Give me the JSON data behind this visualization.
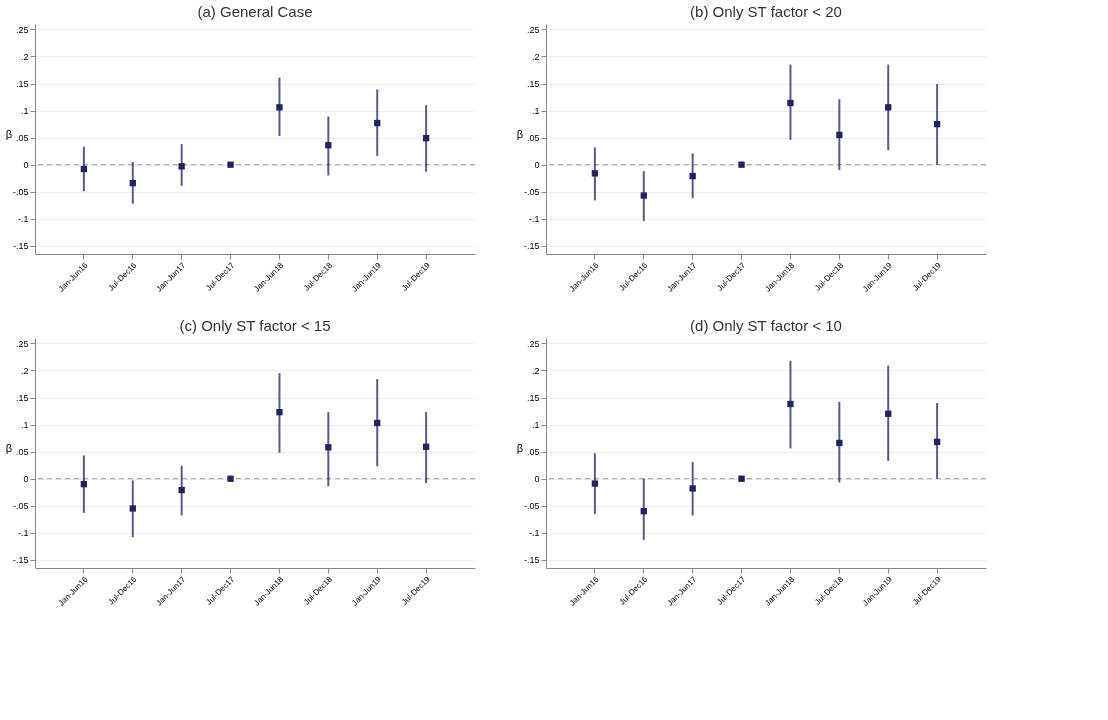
{
  "chart_data": [
    {
      "type": "scatter",
      "title": "(a) General Case",
      "ylabel": "β",
      "categories": [
        "Jan-Jun16",
        "Jul-Dec16",
        "Jan-Jun17",
        "Jul-Dec17",
        "Jan-Jun18",
        "Jul-Dec18",
        "Jan-Jun19",
        "Jul-Dec19"
      ],
      "series": [
        {
          "color": "#23235e",
          "values": [
            -0.008,
            -0.034,
            -0.003,
            0,
            0.106,
            0.036,
            0.077,
            0.049
          ],
          "errors": [
            [
              -0.049,
              0.033
            ],
            [
              -0.072,
              0.005
            ],
            [
              -0.039,
              0.038
            ],
            null,
            [
              0.053,
              0.161
            ],
            [
              -0.02,
              0.089
            ],
            [
              0.016,
              0.139
            ],
            [
              -0.013,
              0.11
            ]
          ]
        }
      ],
      "ylim": [
        -0.165,
        0.26
      ],
      "yticks": [
        {
          "value": 0.25,
          "label": ".25"
        },
        {
          "value": 0.2,
          "label": ".2"
        },
        {
          "value": 0.15,
          "label": ".15"
        },
        {
          "value": 0.1,
          "label": ".1"
        },
        {
          "value": 0.05,
          "label": ".05"
        },
        0,
        {
          "value": -0.05,
          "label": "-.05"
        },
        {
          "value": -0.1,
          "label": "-.1"
        },
        {
          "value": -0.15,
          "label": "-.15"
        }
      ],
      "ref_lines": [
        {
          "axis": "y",
          "value": 0,
          "color": "#999999",
          "line_style": "dashed"
        }
      ],
      "grid": "y",
      "marker": "square"
    },
    {
      "type": "scatter",
      "title": "(b) Only ST factor < 20",
      "ylabel": "β",
      "categories": [
        "Jan-Jun16",
        "Jul-Dec16",
        "Jan-Jun17",
        "Jul-Dec17",
        "Jan-Jun18",
        "Jul-Dec18",
        "Jan-Jun19",
        "Jul-Dec19"
      ],
      "series": [
        {
          "color": "#23235e",
          "values": [
            -0.016,
            -0.057,
            -0.021,
            0,
            0.114,
            0.055,
            0.106,
            0.075
          ],
          "errors": [
            [
              -0.066,
              0.032
            ],
            [
              -0.104,
              -0.012
            ],
            [
              -0.062,
              0.021
            ],
            null,
            [
              0.046,
              0.185
            ],
            [
              -0.01,
              0.121
            ],
            [
              0.027,
              0.185
            ],
            [
              0,
              0.149
            ]
          ]
        }
      ],
      "ylim": [
        -0.165,
        0.26
      ],
      "yticks": [
        {
          "value": 0.25,
          "label": ".25"
        },
        {
          "value": 0.2,
          "label": ".2"
        },
        {
          "value": 0.15,
          "label": ".15"
        },
        {
          "value": 0.1,
          "label": ".1"
        },
        {
          "value": 0.05,
          "label": ".05"
        },
        0,
        {
          "value": -0.05,
          "label": "-.05"
        },
        {
          "value": -0.1,
          "label": "-.1"
        },
        {
          "value": -0.15,
          "label": "-.15"
        }
      ],
      "ref_lines": [
        {
          "axis": "y",
          "value": 0,
          "color": "#999999",
          "line_style": "dashed"
        }
      ],
      "grid": "y",
      "marker": "square"
    },
    {
      "type": "scatter",
      "title": "(c) Only ST factor < 15",
      "ylabel": "β",
      "categories": [
        "Jan-Jun16",
        "Jul-Dec16",
        "Jan-Jun17",
        "Jul-Dec17",
        "Jan-Jun18",
        "Jul-Dec18",
        "Jan-Jun19",
        "Jul-Dec19"
      ],
      "series": [
        {
          "color": "#23235e",
          "values": [
            -0.01,
            -0.055,
            -0.021,
            0,
            0.123,
            0.058,
            0.103,
            0.059
          ],
          "errors": [
            [
              -0.063,
              0.043
            ],
            [
              -0.108,
              -0.003
            ],
            [
              -0.068,
              0.024
            ],
            null,
            [
              0.048,
              0.195
            ],
            [
              -0.014,
              0.123
            ],
            [
              0.023,
              0.184
            ],
            [
              -0.008,
              0.123
            ]
          ]
        }
      ],
      "ylim": [
        -0.165,
        0.26
      ],
      "yticks": [
        {
          "value": 0.25,
          "label": ".25"
        },
        {
          "value": 0.2,
          "label": ".2"
        },
        {
          "value": 0.15,
          "label": ".15"
        },
        {
          "value": 0.1,
          "label": ".1"
        },
        {
          "value": 0.05,
          "label": ".05"
        },
        0,
        {
          "value": -0.05,
          "label": "-.05"
        },
        {
          "value": -0.1,
          "label": "-.1"
        },
        {
          "value": -0.15,
          "label": "-.15"
        }
      ],
      "ref_lines": [
        {
          "axis": "y",
          "value": 0,
          "color": "#999999",
          "line_style": "dashed"
        }
      ],
      "grid": "y",
      "marker": "square"
    },
    {
      "type": "scatter",
      "title": "(d) Only ST factor < 10",
      "ylabel": "β",
      "categories": [
        "Jan-Jun16",
        "Jul-Dec16",
        "Jan-Jun17",
        "Jul-Dec17",
        "Jan-Jun18",
        "Jul-Dec18",
        "Jan-Jun19",
        "Jul-Dec19"
      ],
      "series": [
        {
          "color": "#23235e",
          "values": [
            -0.009,
            -0.06,
            -0.018,
            0,
            0.138,
            0.066,
            0.12,
            0.068
          ],
          "errors": [
            [
              -0.065,
              0.047
            ],
            [
              -0.113,
              0
            ],
            [
              -0.068,
              0.031
            ],
            null,
            [
              0.056,
              0.218
            ],
            [
              -0.007,
              0.142
            ],
            [
              0.033,
              0.209
            ],
            [
              0,
              0.14
            ]
          ]
        }
      ],
      "ylim": [
        -0.165,
        0.26
      ],
      "yticks": [
        {
          "value": 0.25,
          "label": ".25"
        },
        {
          "value": 0.2,
          "label": ".2"
        },
        {
          "value": 0.15,
          "label": ".15"
        },
        {
          "value": 0.1,
          "label": ".1"
        },
        {
          "value": 0.05,
          "label": ".05"
        },
        0,
        {
          "value": -0.05,
          "label": "-.05"
        },
        {
          "value": -0.1,
          "label": "-.1"
        },
        {
          "value": -0.15,
          "label": "-.15"
        }
      ],
      "ref_lines": [
        {
          "axis": "y",
          "value": 0,
          "color": "#999999",
          "line_style": "dashed"
        }
      ],
      "grid": "y",
      "marker": "square"
    }
  ]
}
